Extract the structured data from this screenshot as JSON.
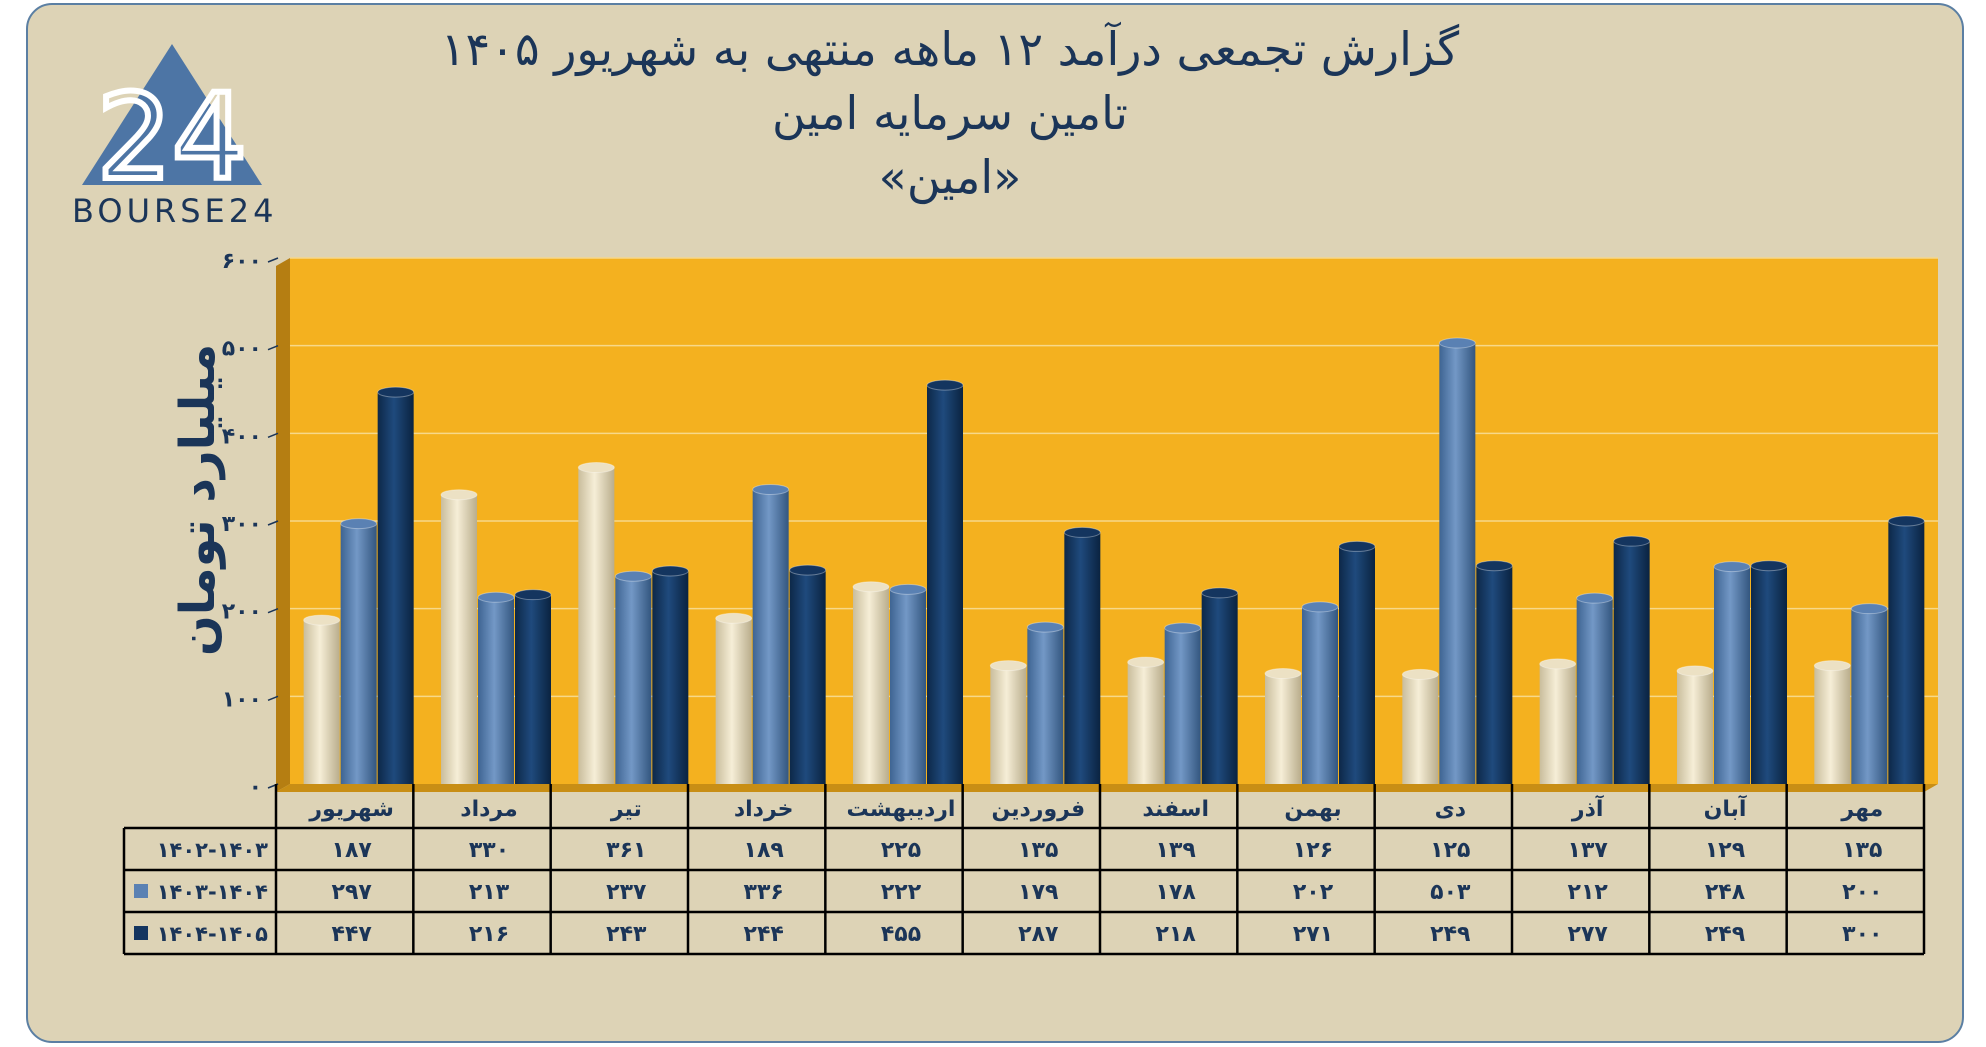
{
  "header": {
    "title_line1": "گزارش تجمعی درآمد ۱۲ ماهه منتهی به شهریور ۱۴۰۵",
    "title_line2": "تامین سرمایه امین",
    "title_line3": "«امین»"
  },
  "logo": {
    "text": "BOURSE24",
    "mark": "24"
  },
  "colors": {
    "plot_bg": "#f4b11f",
    "frame_bg": "#ddd3b6",
    "series": [
      "#ece1c4",
      "#5a81b3",
      "#14355f"
    ],
    "text": "#1b3558"
  },
  "chart_data": {
    "type": "bar",
    "ylabel": "میلیارد تومان",
    "ylim": [
      0,
      600
    ],
    "yticks": [
      "۰",
      "۱۰۰",
      "۲۰۰",
      "۳۰۰",
      "۴۰۰",
      "۵۰۰",
      "۶۰۰"
    ],
    "categories": [
      "مهر",
      "آبان",
      "آذر",
      "دی",
      "بهمن",
      "اسفند",
      "فروردین",
      "اردیبهشت",
      "خرداد",
      "تیر",
      "مرداد",
      "شهریور"
    ],
    "series": [
      {
        "name": "۱۴۰۲-۱۴۰۳",
        "values": [
          135,
          129,
          137,
          125,
          126,
          139,
          135,
          225,
          189,
          361,
          330,
          187
        ],
        "labels": [
          "۱۳۵",
          "۱۲۹",
          "۱۳۷",
          "۱۲۵",
          "۱۲۶",
          "۱۳۹",
          "۱۳۵",
          "۲۲۵",
          "۱۸۹",
          "۳۶۱",
          "۳۳۰",
          "۱۸۷"
        ]
      },
      {
        "name": "۱۴۰۳-۱۴۰۴",
        "values": [
          200,
          248,
          212,
          503,
          202,
          178,
          179,
          222,
          336,
          237,
          213,
          297
        ],
        "labels": [
          "۲۰۰",
          "۲۴۸",
          "۲۱۲",
          "۵۰۳",
          "۲۰۲",
          "۱۷۸",
          "۱۷۹",
          "۲۲۲",
          "۳۳۶",
          "۲۳۷",
          "۲۱۳",
          "۲۹۷"
        ]
      },
      {
        "name": "۱۴۰۴-۱۴۰۵",
        "values": [
          300,
          249,
          277,
          249,
          271,
          218,
          287,
          455,
          244,
          243,
          216,
          447
        ],
        "labels": [
          "۳۰۰",
          "۲۴۹",
          "۲۷۷",
          "۲۴۹",
          "۲۷۱",
          "۲۱۸",
          "۲۸۷",
          "۴۵۵",
          "۲۴۴",
          "۲۴۳",
          "۲۱۶",
          "۴۴۷"
        ]
      }
    ],
    "grid": true,
    "legend": "data-table-bottom"
  }
}
